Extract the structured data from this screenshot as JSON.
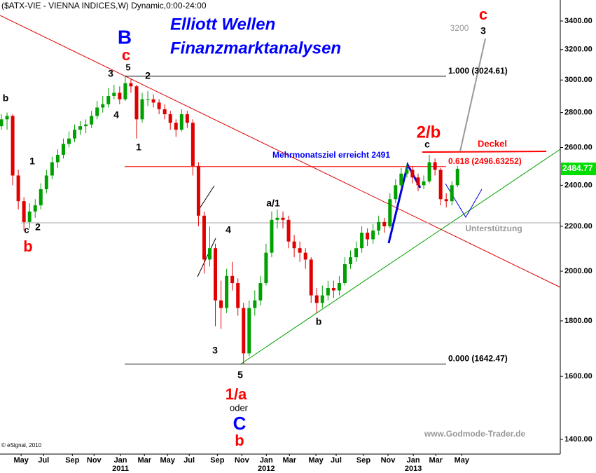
{
  "chart_data": {
    "type": "candlestick",
    "title": "($ATX-VIE - VIENNA INDICES,W) Dynamic,0:00-24:00",
    "headline": [
      "Elliott Wellen",
      "Finanzmarktanalysen"
    ],
    "log_scale": true,
    "ylim": [
      1357,
      3555
    ],
    "yticks": [
      {
        "value": 1400,
        "label": "1400.00"
      },
      {
        "value": 1600,
        "label": "1600.00"
      },
      {
        "value": 1800,
        "label": "1800.00"
      },
      {
        "value": 2000,
        "label": "2000.00"
      },
      {
        "value": 2200,
        "label": "2200.00"
      },
      {
        "value": 2400,
        "label": "2400.00"
      },
      {
        "value": 2600,
        "label": "2600.00"
      },
      {
        "value": 2800,
        "label": "2800.00"
      },
      {
        "value": 3000,
        "label": "3000.00"
      },
      {
        "value": 3200,
        "label": "3200.00"
      },
      {
        "value": 3400,
        "label": "3400.00"
      }
    ],
    "xlim": [
      -7.5,
      191.5
    ],
    "xticks": [
      {
        "value": 0,
        "label": "May"
      },
      {
        "value": 8.0,
        "label": "Jul"
      },
      {
        "value": 18.2,
        "label": "Sep"
      },
      {
        "value": 25.9,
        "label": "Nov"
      },
      {
        "value": 35.3,
        "label": "Jan"
      },
      {
        "value": 43.8,
        "label": "Mar"
      },
      {
        "value": 52.0,
        "label": "May"
      },
      {
        "value": 59.7,
        "label": "Jul"
      },
      {
        "value": 69.7,
        "label": "Sep"
      },
      {
        "value": 78.4,
        "label": "Nov"
      },
      {
        "value": 87.1,
        "label": "Jan"
      },
      {
        "value": 95.3,
        "label": "Mar"
      },
      {
        "value": 104.7,
        "label": "May"
      },
      {
        "value": 111.9,
        "label": "Jul"
      },
      {
        "value": 121.6,
        "label": "Sep"
      },
      {
        "value": 130.3,
        "label": "Nov"
      },
      {
        "value": 139.3,
        "label": "Jan"
      },
      {
        "value": 147.3,
        "label": "Mar"
      },
      {
        "value": 156.5,
        "label": "May"
      }
    ],
    "year_labels": [
      {
        "value": 35.3,
        "label": "2011"
      },
      {
        "value": 87.1,
        "label": "2012"
      },
      {
        "value": 139.3,
        "label": "2013"
      }
    ],
    "up_color": "#00a000",
    "down_color": "#e00000",
    "series": [
      {
        "x": [
          -7,
          -5,
          -3,
          -1,
          1,
          3,
          5,
          7,
          9,
          11,
          13,
          15,
          17,
          19,
          21,
          23,
          25,
          27,
          29,
          31,
          33,
          35,
          37,
          39,
          41,
          43,
          45,
          47,
          49,
          51,
          53,
          55,
          57,
          59,
          61,
          63,
          65,
          67,
          69,
          71,
          73,
          75,
          77,
          79,
          81,
          83,
          85,
          87,
          89,
          91,
          93,
          95,
          97,
          99,
          101,
          103,
          105,
          107,
          109,
          111,
          113,
          115,
          117,
          119,
          121,
          123,
          125,
          127,
          129,
          131,
          133,
          135,
          137,
          139,
          141,
          143,
          145,
          147,
          149,
          151,
          153,
          155
        ],
        "ohlc": [
          [
            2720,
            2790,
            2700,
            2760
          ],
          [
            2760,
            2800,
            2700,
            2780
          ],
          [
            2780,
            2790,
            2400,
            2450
          ],
          [
            2450,
            2480,
            2280,
            2320
          ],
          [
            2320,
            2340,
            2180,
            2220
          ],
          [
            2220,
            2310,
            2190,
            2270
          ],
          [
            2270,
            2330,
            2240,
            2300
          ],
          [
            2300,
            2410,
            2280,
            2380
          ],
          [
            2380,
            2480,
            2360,
            2450
          ],
          [
            2450,
            2550,
            2430,
            2520
          ],
          [
            2520,
            2590,
            2490,
            2560
          ],
          [
            2560,
            2650,
            2540,
            2620
          ],
          [
            2620,
            2690,
            2600,
            2650
          ],
          [
            2650,
            2730,
            2630,
            2700
          ],
          [
            2700,
            2750,
            2670,
            2720
          ],
          [
            2720,
            2760,
            2680,
            2730
          ],
          [
            2730,
            2810,
            2710,
            2780
          ],
          [
            2780,
            2870,
            2760,
            2830
          ],
          [
            2830,
            2900,
            2800,
            2850
          ],
          [
            2850,
            2950,
            2830,
            2900
          ],
          [
            2900,
            2970,
            2880,
            2920
          ],
          [
            2920,
            2960,
            2850,
            2880
          ],
          [
            2880,
            3025,
            2870,
            2980
          ],
          [
            2980,
            3010,
            2920,
            2960
          ],
          [
            2960,
            2970,
            2650,
            2760
          ],
          [
            2760,
            2920,
            2740,
            2880
          ],
          [
            2880,
            2930,
            2840,
            2880
          ],
          [
            2880,
            2910,
            2830,
            2860
          ],
          [
            2860,
            2880,
            2790,
            2820
          ],
          [
            2820,
            2850,
            2760,
            2790
          ],
          [
            2790,
            2810,
            2700,
            2740
          ],
          [
            2740,
            2760,
            2660,
            2700
          ],
          [
            2700,
            2820,
            2690,
            2790
          ],
          [
            2790,
            2810,
            2710,
            2740
          ],
          [
            2740,
            2760,
            2450,
            2500
          ],
          [
            2500,
            2520,
            2200,
            2250
          ],
          [
            2250,
            2270,
            1990,
            2050
          ],
          [
            2050,
            2200,
            2020,
            2100
          ],
          [
            2100,
            2120,
            1780,
            1880
          ],
          [
            1880,
            1960,
            1770,
            1850
          ],
          [
            1850,
            2010,
            1830,
            1980
          ],
          [
            1980,
            2040,
            1920,
            1950
          ],
          [
            1950,
            1970,
            1820,
            1850
          ],
          [
            1850,
            1870,
            1642,
            1680
          ],
          [
            1680,
            1880,
            1670,
            1850
          ],
          [
            1850,
            1920,
            1820,
            1880
          ],
          [
            1880,
            1980,
            1860,
            1950
          ],
          [
            1950,
            2120,
            1940,
            2080
          ],
          [
            2080,
            2270,
            2060,
            2230
          ],
          [
            2230,
            2280,
            2190,
            2240
          ],
          [
            2240,
            2270,
            2190,
            2230
          ],
          [
            2230,
            2250,
            2100,
            2130
          ],
          [
            2130,
            2160,
            2060,
            2100
          ],
          [
            2100,
            2130,
            2040,
            2080
          ],
          [
            2080,
            2100,
            2010,
            2050
          ],
          [
            2050,
            2060,
            1870,
            1900
          ],
          [
            1900,
            1930,
            1830,
            1870
          ],
          [
            1870,
            1940,
            1850,
            1900
          ],
          [
            1900,
            1960,
            1880,
            1930
          ],
          [
            1930,
            1960,
            1890,
            1920
          ],
          [
            1920,
            1980,
            1900,
            1950
          ],
          [
            1950,
            2060,
            1940,
            2030
          ],
          [
            2030,
            2090,
            2010,
            2060
          ],
          [
            2060,
            2130,
            2040,
            2100
          ],
          [
            2100,
            2200,
            2080,
            2170
          ],
          [
            2170,
            2190,
            2110,
            2140
          ],
          [
            2140,
            2210,
            2120,
            2180
          ],
          [
            2180,
            2250,
            2160,
            2220
          ],
          [
            2220,
            2240,
            2170,
            2200
          ],
          [
            2200,
            2360,
            2190,
            2330
          ],
          [
            2330,
            2430,
            2310,
            2400
          ],
          [
            2400,
            2490,
            2380,
            2460
          ],
          [
            2460,
            2510,
            2440,
            2480
          ],
          [
            2480,
            2500,
            2410,
            2440
          ],
          [
            2440,
            2460,
            2370,
            2400
          ],
          [
            2400,
            2450,
            2380,
            2420
          ],
          [
            2420,
            2560,
            2410,
            2520
          ],
          [
            2520,
            2540,
            2450,
            2480
          ],
          [
            2480,
            2490,
            2300,
            2330
          ],
          [
            2330,
            2360,
            2290,
            2320
          ],
          [
            2320,
            2420,
            2300,
            2400
          ],
          [
            2400,
            2500,
            2390,
            2485
          ]
        ]
      }
    ],
    "last_price": 2484.77,
    "last_price_color": "#00dd00",
    "levels": [
      {
        "value": 3024.61,
        "label": "1.000 (3024.61)",
        "color": "#000000"
      },
      {
        "value": 2496.63252,
        "label": "0.618 (2496.63252)",
        "color": "#ff0000"
      },
      {
        "value": 1642.47,
        "label": "0.000 (1642.47)",
        "color": "#000000"
      }
    ],
    "annotations": [
      {
        "text": "B",
        "color": "#0000ff"
      },
      {
        "text": "c",
        "color": "#ff0000"
      },
      {
        "text": "5",
        "color": "#000000"
      },
      {
        "text": "3",
        "color": "#000000"
      },
      {
        "text": "2",
        "color": "#000000"
      },
      {
        "text": "4",
        "color": "#000000"
      },
      {
        "text": "1",
        "color": "#000000"
      },
      {
        "text": "b",
        "color": "#000000"
      },
      {
        "text": "1",
        "color": "#000000"
      },
      {
        "text": "c",
        "color": "#000000"
      },
      {
        "text": "2",
        "color": "#000000"
      },
      {
        "text": "b",
        "color": "#ff0000"
      },
      {
        "text": "4",
        "color": "#000000"
      },
      {
        "text": "3",
        "color": "#000000"
      },
      {
        "text": "5",
        "color": "#000000"
      },
      {
        "text": "1/a",
        "color": "#ff0000"
      },
      {
        "text": "oder",
        "color": "#000000"
      },
      {
        "text": "C",
        "color": "#0000ff"
      },
      {
        "text": "b",
        "color": "#ff0000"
      },
      {
        "text": "a/1",
        "color": "#000000"
      },
      {
        "text": "b",
        "color": "#000000"
      },
      {
        "text": "c",
        "color": "#000000"
      },
      {
        "text": "2/b",
        "color": "#ff0000"
      },
      {
        "text": "c",
        "color": "#ff0000"
      },
      {
        "text": "3",
        "color": "#000000"
      },
      {
        "text": "3200",
        "color": "#999999"
      },
      {
        "text": "Mehrmonatsziel erreicht 2491",
        "color": "#0000ff"
      },
      {
        "text": "Deckel",
        "color": "#ff0000"
      },
      {
        "text": "Unterstützung",
        "color": "#999999"
      },
      {
        "text": "www.Godmode-Trader.de",
        "color": "#999999"
      },
      {
        "text": "© eSignal, 2010",
        "color": "#000000"
      }
    ]
  }
}
